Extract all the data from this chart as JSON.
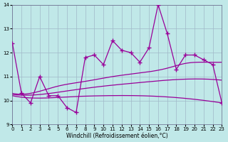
{
  "xlabel": "Windchill (Refroidissement éolien,°C)",
  "xlim": [
    0,
    23
  ],
  "ylim": [
    9,
    14
  ],
  "xticks": [
    0,
    1,
    2,
    3,
    4,
    5,
    6,
    7,
    8,
    9,
    10,
    11,
    12,
    13,
    14,
    15,
    16,
    17,
    18,
    19,
    20,
    21,
    22,
    23
  ],
  "yticks": [
    9,
    10,
    11,
    12,
    13,
    14
  ],
  "background_color": "#c0e8e8",
  "grid_color": "#a0b8c8",
  "line_color": "#990099",
  "line1": [
    12.4,
    10.3,
    9.9,
    11.0,
    10.2,
    10.2,
    9.7,
    9.5,
    11.8,
    11.9,
    11.5,
    12.5,
    12.1,
    12.0,
    11.6,
    12.2,
    14.0,
    12.8,
    11.3,
    11.9,
    11.9,
    11.7,
    11.5,
    9.9
  ],
  "smooth1_pts": [
    [
      0,
      10.3
    ],
    [
      2,
      10.3
    ],
    [
      5,
      10.6
    ],
    [
      8,
      10.8
    ],
    [
      11,
      11.0
    ],
    [
      14,
      11.15
    ],
    [
      17,
      11.35
    ],
    [
      19,
      11.55
    ],
    [
      21,
      11.6
    ],
    [
      23,
      11.6
    ]
  ],
  "smooth2_pts": [
    [
      0,
      10.25
    ],
    [
      3,
      10.25
    ],
    [
      6,
      10.4
    ],
    [
      10,
      10.6
    ],
    [
      14,
      10.75
    ],
    [
      17,
      10.85
    ],
    [
      20,
      10.9
    ],
    [
      23,
      10.85
    ]
  ],
  "smooth3_pts": [
    [
      0,
      10.2
    ],
    [
      3,
      10.1
    ],
    [
      6,
      10.15
    ],
    [
      10,
      10.2
    ],
    [
      14,
      10.2
    ],
    [
      17,
      10.15
    ],
    [
      20,
      10.05
    ],
    [
      23,
      9.9
    ]
  ]
}
